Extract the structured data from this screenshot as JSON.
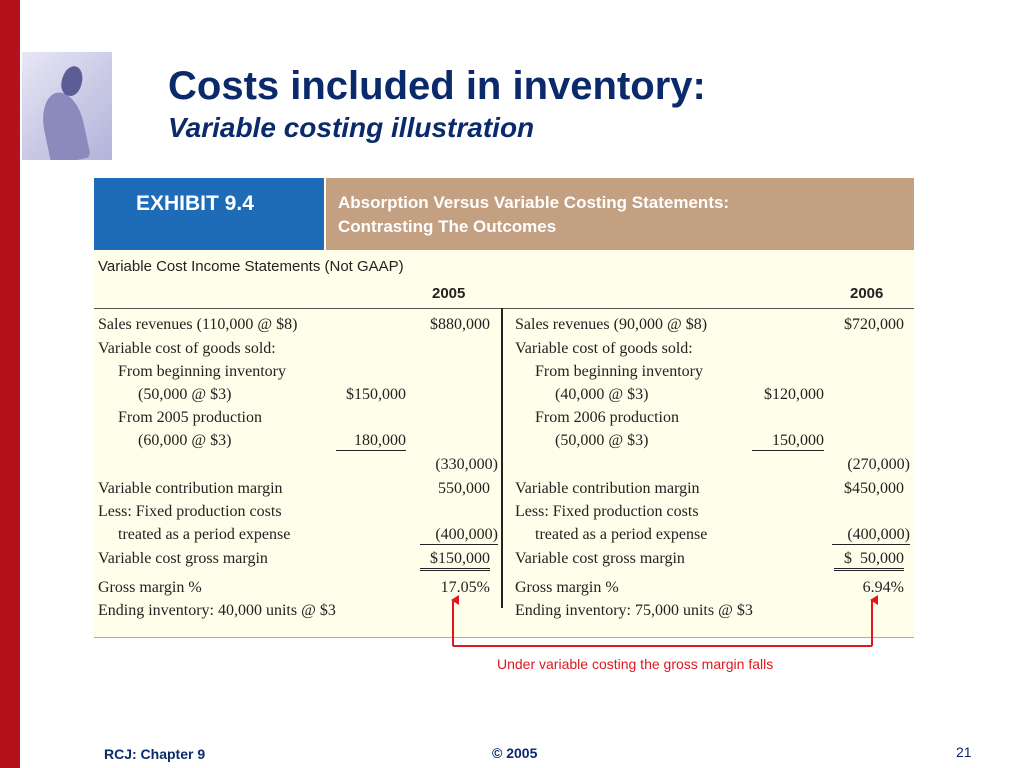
{
  "slide": {
    "title": "Costs included in inventory:",
    "subtitle": "Variable costing illustration",
    "annotation": "Under variable costing the gross margin falls",
    "footer_left": "RCJ: Chapter 9",
    "footer_center": "© 2005",
    "page_number": "21",
    "colors": {
      "accent_bar": "#b3121d",
      "title": "#0a2a6c",
      "exhibit_label_bg": "#1e6bb8",
      "exhibit_caption_bg": "#c4a083",
      "annotation": "#e0171f"
    }
  },
  "exhibit": {
    "label": "EXHIBIT 9.4",
    "caption_line1": "Absorption Versus Variable Costing Statements:",
    "caption_line2": "Contrasting The Outcomes",
    "statement_title": "Variable Cost Income Statements (Not GAAP)",
    "years": [
      "2005",
      "2006"
    ],
    "left": {
      "sales_label": "Sales revenues (110,000 @ $8)",
      "sales_value": "$880,000",
      "vcogs_label": "Variable cost of goods sold:",
      "begin_inv_label": "From beginning inventory",
      "begin_inv_detail": "(50,000 @ $3)",
      "begin_inv_value": "$150,000",
      "production_label": "From 2005 production",
      "production_detail": "(60,000 @ $3)",
      "production_value": "180,000",
      "vcogs_total": "(330,000)",
      "contribution_label": "Variable contribution margin",
      "contribution_value": "550,000",
      "fixed_label1": "Less: Fixed production costs",
      "fixed_label2": "treated as a period expense",
      "fixed_value": "(400,000)",
      "gross_label": "Variable cost gross margin",
      "gross_value": "$150,000",
      "gm_pct_label": "Gross margin %",
      "gm_pct_value": "17.05%",
      "ending_inv_label": "Ending inventory: 40,000 units @ $3"
    },
    "right": {
      "sales_label": "Sales revenues (90,000 @ $8)",
      "sales_value": "$720,000",
      "vcogs_label": "Variable cost of goods sold:",
      "begin_inv_label": "From beginning inventory",
      "begin_inv_detail": "(40,000 @ $3)",
      "begin_inv_value": "$120,000",
      "production_label": "From 2006 production",
      "production_detail": "(50,000 @ $3)",
      "production_value": "150,000",
      "vcogs_total": "(270,000)",
      "contribution_label": "Variable contribution margin",
      "contribution_value": "$450,000",
      "fixed_label1": "Less: Fixed production costs",
      "fixed_label2": "treated as a period expense",
      "fixed_value": "(400,000)",
      "gross_label": "Variable cost gross margin",
      "gross_value": "$  50,000",
      "gm_pct_label": "Gross margin %",
      "gm_pct_value": "6.94%",
      "ending_inv_label": "Ending inventory: 75,000 units @ $3"
    }
  }
}
